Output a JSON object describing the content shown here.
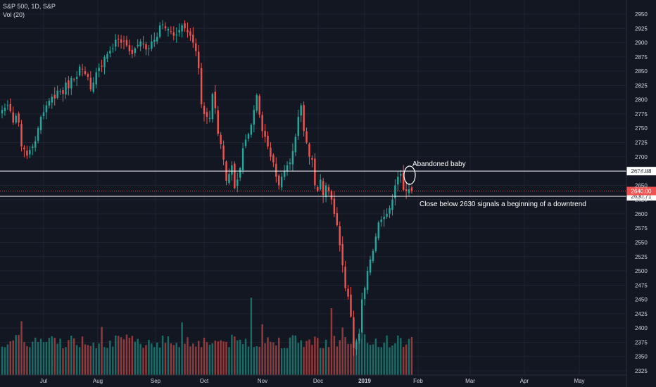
{
  "legend": {
    "symbol_line": "S&P 500, 1D, S&P",
    "volume_line": "Vol (20)"
  },
  "colors": {
    "background": "#131722",
    "grid": "#1f2330",
    "up": "#26a69a",
    "down": "#ef5350",
    "up_volume": "#1d7a72",
    "down_volume": "#a8403f",
    "text": "#d1d4dc",
    "line": "#ffffff",
    "price_tag": "#ef5350"
  },
  "chart_data": {
    "type": "candlestick",
    "x_labels": [
      "Jul",
      "Aug",
      "Sep",
      "Oct",
      "Nov",
      "Dec",
      "2019",
      "Feb",
      "Mar",
      "Apr",
      "May"
    ],
    "y_ticks": [
      2325,
      2350,
      2375,
      2400,
      2425,
      2450,
      2475,
      2500,
      2525,
      2550,
      2575,
      2600,
      2625,
      2650,
      2675,
      2700,
      2725,
      2750,
      2775,
      2800,
      2825,
      2850,
      2875,
      2900,
      2925,
      2950
    ],
    "ylim": [
      2315,
      2960
    ],
    "grid": true,
    "closes": [
      2782,
      2786,
      2790,
      2780,
      2760,
      2772,
      2760,
      2718,
      2713,
      2702,
      2712,
      2718,
      2727,
      2750,
      2770,
      2778,
      2790,
      2798,
      2805,
      2802,
      2816,
      2815,
      2810,
      2830,
      2820,
      2838,
      2835,
      2840,
      2858,
      2853,
      2845,
      2840,
      2818,
      2830,
      2848,
      2856,
      2858,
      2875,
      2880,
      2886,
      2890,
      2905,
      2906,
      2900,
      2902,
      2895,
      2885,
      2880,
      2890,
      2896,
      2902,
      2898,
      2888,
      2890,
      2902,
      2905,
      2910,
      2930,
      2932,
      2925,
      2924,
      2920,
      2912,
      2914,
      2922,
      2930,
      2925,
      2918,
      2912,
      2900,
      2885,
      2855,
      2792,
      2775,
      2770,
      2768,
      2810,
      2785,
      2740,
      2722,
      2695,
      2658,
      2670,
      2685,
      2645,
      2660,
      2680,
      2715,
      2730,
      2740,
      2756,
      2782,
      2808,
      2774,
      2745,
      2735,
      2718,
      2700,
      2690,
      2665,
      2650,
      2665,
      2675,
      2685,
      2690,
      2710,
      2735,
      2770,
      2790,
      2745,
      2725,
      2700,
      2695,
      2650,
      2640,
      2660,
      2633,
      2650,
      2640,
      2625,
      2600,
      2580,
      2545,
      2510,
      2470,
      2455,
      2420,
      2365,
      2375,
      2390,
      2450,
      2470,
      2500,
      2520,
      2535,
      2560,
      2585,
      2590,
      2595,
      2600,
      2610,
      2625,
      2650,
      2665,
      2670,
      2642,
      2640,
      2643,
      2640
    ],
    "annotations": [
      {
        "text": "Abandoned baby"
      },
      {
        "text": "Close below 2630 signals a beginning of a downtrend"
      }
    ],
    "horizontal_lines": [
      {
        "price": 2674.88,
        "label": "2674.88"
      },
      {
        "price": 2630.71,
        "label": "2630.71"
      }
    ],
    "last_price": {
      "price": 2640.0,
      "label": "2640.00"
    }
  }
}
